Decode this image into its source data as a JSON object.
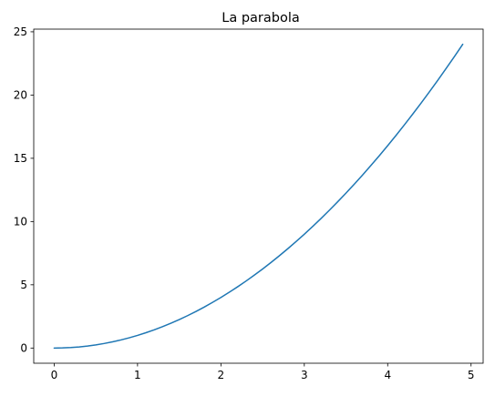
{
  "chart_data": {
    "type": "line",
    "title": "La parabola",
    "xlabel": "",
    "ylabel": "",
    "xlim": [
      -0.245,
      5.145
    ],
    "ylim": [
      -1.2005,
      25.2105
    ],
    "x_ticks": [
      0,
      1,
      2,
      3,
      4,
      5
    ],
    "y_ticks": [
      0,
      5,
      10,
      15,
      20,
      25
    ],
    "grid": false,
    "legend": "none",
    "series": [
      {
        "color": "#1f77b4",
        "x": [
          0.0,
          0.1,
          0.2,
          0.3,
          0.4,
          0.5,
          0.6,
          0.7,
          0.8,
          0.9,
          1.0,
          1.1,
          1.2,
          1.3,
          1.4,
          1.5,
          1.6,
          1.7,
          1.8,
          1.9,
          2.0,
          2.1,
          2.2,
          2.3,
          2.4,
          2.5,
          2.6,
          2.7,
          2.8,
          2.9,
          3.0,
          3.1,
          3.2,
          3.3,
          3.4,
          3.5,
          3.6,
          3.7,
          3.8,
          3.9,
          4.0,
          4.1,
          4.2,
          4.3,
          4.4,
          4.5,
          4.6,
          4.7,
          4.8,
          4.9
        ],
        "y": [
          0.0,
          0.01,
          0.04,
          0.09,
          0.16,
          0.25,
          0.36,
          0.49,
          0.64,
          0.81,
          1.0,
          1.21,
          1.44,
          1.69,
          1.96,
          2.25,
          2.56,
          2.89,
          3.24,
          3.61,
          4.0,
          4.41,
          4.84,
          5.29,
          5.76,
          6.25,
          6.76,
          7.29,
          7.84,
          8.41,
          9.0,
          9.61,
          10.24,
          10.89,
          11.56,
          12.25,
          12.96,
          13.69,
          14.44,
          15.21,
          16.0,
          16.81,
          17.64,
          18.49,
          19.36,
          20.25,
          21.16,
          22.09,
          23.04,
          24.01
        ]
      }
    ]
  }
}
